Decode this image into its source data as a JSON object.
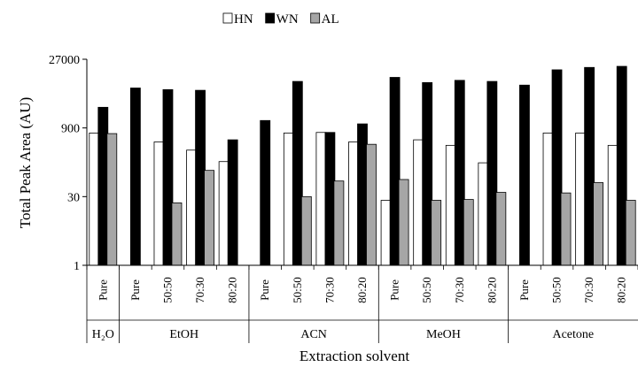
{
  "chart_data": {
    "type": "bar",
    "title": "",
    "xlabel": "Extraction solvent",
    "ylabel": "Total Peak Area (AU)",
    "yscale": "log",
    "ylim": [
      1,
      27000
    ],
    "yticks": [
      1,
      30,
      900,
      27000
    ],
    "ytick_labels": [
      "1",
      "30",
      "900",
      "27000"
    ],
    "grid": false,
    "legend_position": "top-center",
    "groups": [
      {
        "label": "H₂O",
        "categories": [
          "Pure"
        ]
      },
      {
        "label": "EtOH",
        "categories": [
          "Pure",
          "50:50",
          "70:30",
          "80:20"
        ]
      },
      {
        "label": "ACN",
        "categories": [
          "Pure",
          "50:50",
          "70:30",
          "80:20"
        ]
      },
      {
        "label": "MeOH",
        "categories": [
          "Pure",
          "50:50",
          "70:30",
          "80:20"
        ]
      },
      {
        "label": "Acetone",
        "categories": [
          "Pure",
          "50:50",
          "70:30",
          "80:20"
        ]
      }
    ],
    "series": [
      {
        "name": "HN",
        "color": "#ffffff",
        "values": [
          700,
          null,
          450,
          300,
          170,
          null,
          700,
          720,
          450,
          25,
          500,
          380,
          160,
          null,
          700,
          700,
          380
        ]
      },
      {
        "name": "WN",
        "color": "#000000",
        "values": [
          2500,
          6500,
          6000,
          5800,
          500,
          1300,
          9000,
          720,
          1100,
          11000,
          8500,
          9500,
          9000,
          7500,
          16000,
          18000,
          19000
        ]
      },
      {
        "name": "AL",
        "color": "#a6a6a6",
        "values": [
          680,
          null,
          22,
          110,
          null,
          null,
          30,
          65,
          400,
          70,
          25,
          26,
          37,
          null,
          36,
          60,
          25
        ]
      }
    ]
  }
}
